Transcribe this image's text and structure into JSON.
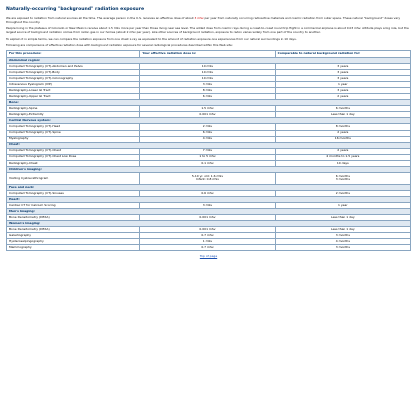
{
  "title": "Naturally-occurring \"background\" radiation exposure",
  "paragraphs": [
    {
      "pre": "We are exposed to radiation from natural sources all the time. The average person in the U.S. receives an effective dose of about ",
      "hl": "3 mSv",
      "post": " per year from naturally occurring radioactive materials and cosmic radiation from outer space. These natural \"background\" doses vary throughout the country."
    },
    {
      "pre": "People living in the plateaus of Colorado or New Mexico receive about 1.5 mSv more per year than those living near sea level. The added dose from cosmic rays during a coast-to-coast round trip flight in a commercial airplane is about 0.03 mSv. Altitude plays a big role, but the largest source of background radiation comes from radon gas in our homes (about 2 mSv per year). Like other sources of background radiation, exposure to radon varies widely from one part of the country to another.",
      "hl": "",
      "post": ""
    },
    {
      "pre": "To explain it in simple terms, we can compare the radiation exposure from one chest x-ray as equivalent to the amount of radiation exposure one experiences from our natural surroundings in 10 days.",
      "hl": "",
      "post": ""
    },
    {
      "pre": "Following are comparisons of effective radiation dose with background radiation exposure for several radiological procedures described within this Web site:",
      "hl": "",
      "post": ""
    }
  ],
  "table": {
    "headers": [
      "For this procedure:",
      "Your effective radiation dose is:",
      "Comparable to natural background radiation for:"
    ],
    "rows": [
      {
        "kind": "section",
        "label": "Abdominal region:"
      },
      {
        "kind": "data",
        "cells": [
          "Computed Tomography (CT)-Abdomen and Pelvis",
          "10 mSv",
          "3 years"
        ]
      },
      {
        "kind": "data",
        "cells": [
          "Computed Tomography (CT)-Body",
          "10 mSv",
          "3 years"
        ]
      },
      {
        "kind": "data",
        "cells": [
          "Computed Tomography (CT)-Colonography",
          "10 mSv",
          "3 years"
        ]
      },
      {
        "kind": "data",
        "cells": [
          "Intravenous Pyelogram (IVP)",
          "3 mSv",
          "1 year"
        ]
      },
      {
        "kind": "data",
        "cells": [
          "Radiography-Lower GI Tract",
          "8 mSv",
          "3 years"
        ]
      },
      {
        "kind": "data",
        "cells": [
          "Radiography-Upper GI Tract",
          "6 mSv",
          "2 years"
        ]
      },
      {
        "kind": "section",
        "label": "Bone:"
      },
      {
        "kind": "data",
        "cells": [
          "Radiography-Spine",
          "1.5 mSv",
          "6 months"
        ]
      },
      {
        "kind": "data",
        "cells": [
          "Radiography-Extremity",
          "0.001 mSv",
          "Less than 1 day"
        ]
      },
      {
        "kind": "section",
        "label": "Central Nervous system:"
      },
      {
        "kind": "data",
        "cells": [
          "Computed Tomography (CT)-Head",
          "2 mSv",
          "8 months"
        ]
      },
      {
        "kind": "data",
        "cells": [
          "Computed Tomography (CT)-Spine",
          "6 mSv",
          "2 years"
        ]
      },
      {
        "kind": "data",
        "cells": [
          "Myelography",
          "4 mSv",
          "16 months"
        ]
      },
      {
        "kind": "section",
        "label": "Chest:"
      },
      {
        "kind": "data",
        "cells": [
          "Computed Tomography (CT)-Chest",
          "7 mSv",
          "2 years"
        ]
      },
      {
        "kind": "data",
        "cells": [
          "Computed Tomography (CT)-Chest Low Dose",
          "1 to 5 mSv",
          "4 months to 1.5 years"
        ]
      },
      {
        "kind": "data",
        "cells": [
          "Radiography-Chest",
          "0.1 mSv",
          "10 days"
        ]
      },
      {
        "kind": "section",
        "label": "Children's imaging:"
      },
      {
        "kind": "stack",
        "cells": [
          "Voiding Cystourethrogram",
          [
            "5-10 yr. old: 1.6 mSv",
            "Infant: 0.8 mSv"
          ],
          [
            "6 months",
            "3 months"
          ]
        ]
      },
      {
        "kind": "section",
        "label": "Face and neck:"
      },
      {
        "kind": "data",
        "cells": [
          "Computed Tomography (CT)-Sinuses",
          "0.6 mSv",
          "2 months"
        ]
      },
      {
        "kind": "section",
        "label": "Heart:"
      },
      {
        "kind": "data",
        "cells": [
          "Cardiac CT for Calcium Scoring",
          "3 mSv",
          "1 year"
        ]
      },
      {
        "kind": "section",
        "label": "Men's Imaging:"
      },
      {
        "kind": "data",
        "cells": [
          "Bone Densitometry (DEXA)",
          "0.001 mSv",
          "Less than 1 day"
        ]
      },
      {
        "kind": "section",
        "label": "Women's Imaging:"
      },
      {
        "kind": "data",
        "cells": [
          "Bone Densitometry (DEXA)",
          "0.001 mSv",
          "Less than 1 day"
        ]
      },
      {
        "kind": "data",
        "cells": [
          "Galactography",
          "0.7 mSv",
          "3 months"
        ]
      },
      {
        "kind": "data",
        "cells": [
          "Hysterosalpingography",
          "1 mSv",
          "4 months"
        ]
      },
      {
        "kind": "data",
        "cells": [
          "Mammography",
          "0.7 mSv",
          "3 months"
        ]
      }
    ]
  },
  "top_link": "Top of page"
}
